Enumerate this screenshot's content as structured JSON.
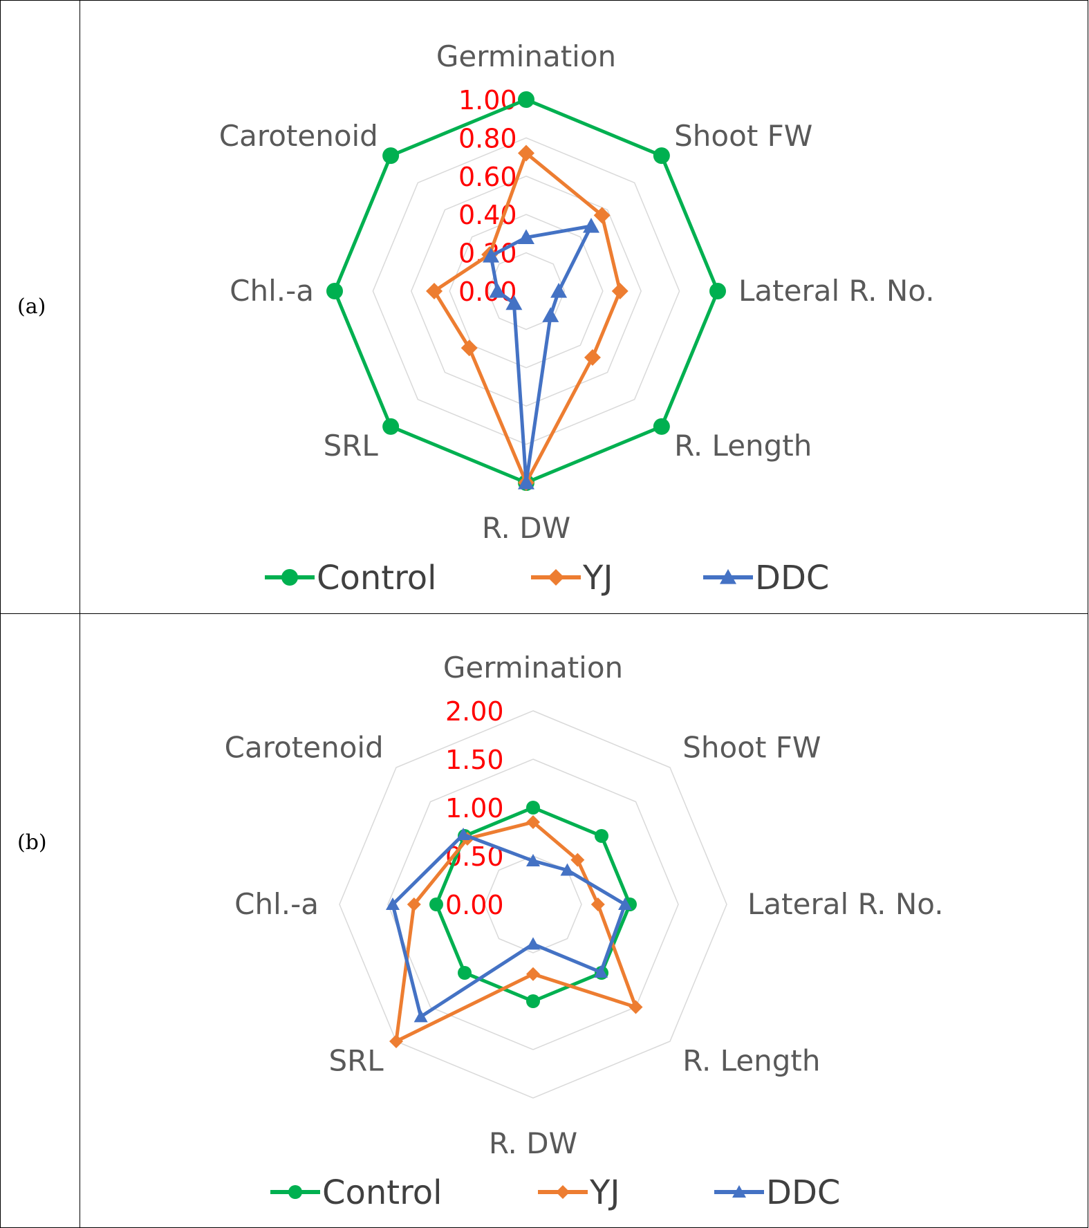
{
  "chart_data": [
    {
      "panel_label": "(a)",
      "type": "radar",
      "categories": [
        "Germination",
        "Shoot FW",
        "Lateral R. No.",
        "R. Length",
        "R. DW",
        "SRL",
        "Chl.-a",
        "Carotenoid"
      ],
      "rmax": 1.0,
      "ticks": [
        "0.00",
        "0.20",
        "0.40",
        "0.60",
        "0.80",
        "1.00"
      ],
      "tick_values": [
        0,
        0.2,
        0.4,
        0.6,
        0.8,
        1.0
      ],
      "gridlines": 5,
      "series": [
        {
          "name": "Control",
          "color": "#00b050",
          "marker": "circle",
          "values": [
            1.0,
            1.0,
            1.0,
            1.0,
            1.0,
            1.0,
            1.0,
            1.0
          ]
        },
        {
          "name": "YJ",
          "color": "#ed7d31",
          "marker": "diamond",
          "values": [
            0.72,
            0.56,
            0.49,
            0.49,
            1.0,
            0.42,
            0.48,
            0.27
          ]
        },
        {
          "name": "DDC",
          "color": "#4472c4",
          "marker": "triangle",
          "values": [
            0.28,
            0.48,
            0.17,
            0.18,
            1.0,
            0.09,
            0.15,
            0.26
          ]
        }
      ],
      "legend": [
        "Control",
        "YJ",
        "DDC"
      ]
    },
    {
      "panel_label": "(b)",
      "type": "radar",
      "categories": [
        "Germination",
        "Shoot FW",
        "Lateral R. No.",
        "R. Length",
        "R. DW",
        "SRL",
        "Chl.-a",
        "Carotenoid"
      ],
      "rmax": 2.0,
      "ticks": [
        "0.00",
        "0.50",
        "1.00",
        "1.50",
        "2.00"
      ],
      "tick_values": [
        0,
        0.5,
        1.0,
        1.5,
        2.0
      ],
      "gridlines": 4,
      "series": [
        {
          "name": "Control",
          "color": "#00b050",
          "marker": "circle",
          "values": [
            1.0,
            1.0,
            1.0,
            1.0,
            1.0,
            1.0,
            1.0,
            1.0
          ]
        },
        {
          "name": "YJ",
          "color": "#ed7d31",
          "marker": "diamond",
          "values": [
            0.85,
            0.65,
            0.67,
            1.5,
            0.72,
            2.0,
            1.23,
            0.96
          ]
        },
        {
          "name": "DDC",
          "color": "#4472c4",
          "marker": "triangle",
          "values": [
            0.45,
            0.5,
            0.95,
            0.99,
            0.41,
            1.64,
            1.45,
            1.02
          ]
        }
      ],
      "legend": [
        "Control",
        "YJ",
        "DDC"
      ]
    }
  ]
}
